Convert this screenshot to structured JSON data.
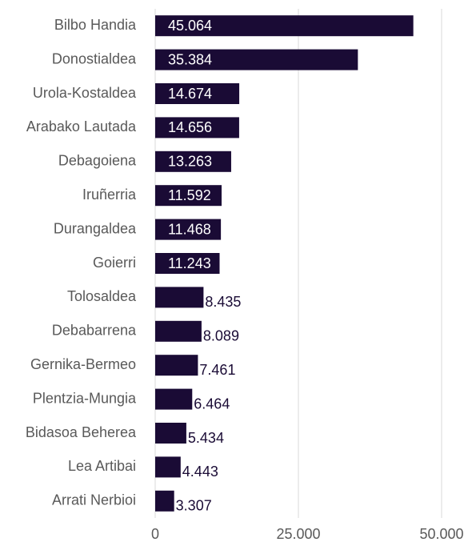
{
  "chart_data": {
    "type": "bar",
    "orientation": "horizontal",
    "categories": [
      "Bilbo Handia",
      "Donostialdea",
      "Urola-Kostaldea",
      "Arabako Lautada",
      "Debagoiena",
      "Iruñerria",
      "Durangaldea",
      "Goierri",
      "Tolosaldea",
      "Debabarrena",
      "Gernika-Bermeo",
      "Plentzia-Mungia",
      "Bidasoa Beherea",
      "Lea Artibai",
      "Arrati Nerbioi"
    ],
    "values": [
      45064,
      35384,
      14674,
      14656,
      13263,
      11592,
      11468,
      11243,
      8435,
      8089,
      7461,
      6464,
      5434,
      4443,
      3307
    ],
    "value_labels": [
      "45.064",
      "35.384",
      "14.674",
      "14.656",
      "13.263",
      "11.592",
      "11.468",
      "11.243",
      "8.435",
      "8.089",
      "7.461",
      "6.464",
      "5.434",
      "4.443",
      "3.307"
    ],
    "color": "#1a0b35",
    "xlim": [
      0,
      50000
    ],
    "xticks": [
      0,
      {
        "value": 25000,
        "label": "25.000"
      },
      {
        "value": 50000,
        "label": "50.000"
      }
    ],
    "grid": true
  }
}
